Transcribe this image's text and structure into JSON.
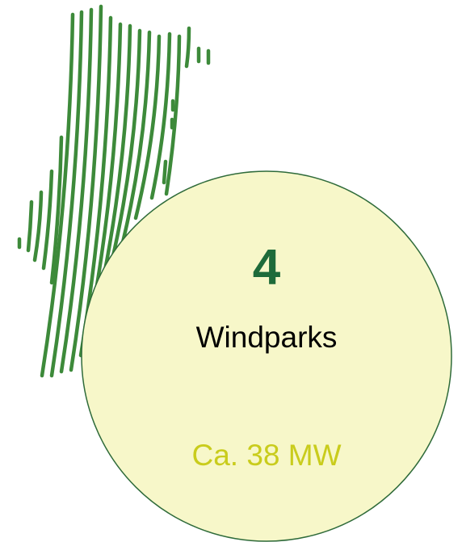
{
  "count": 4,
  "label": "Windparks",
  "capacity": "Ca. 38 MW"
}
